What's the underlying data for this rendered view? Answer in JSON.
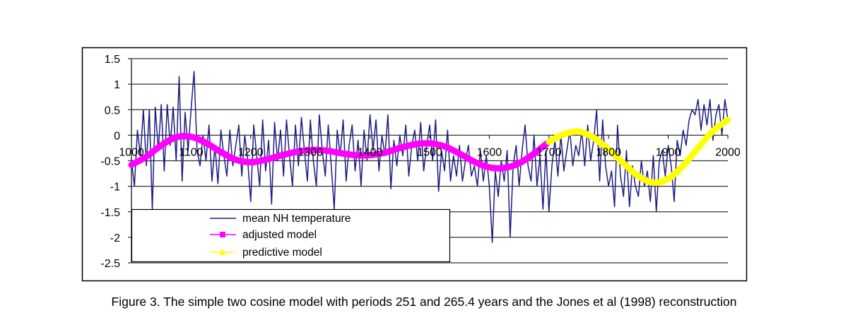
{
  "caption": "Figure 3. The simple two cosine model with periods 251 and 265.4 years and the Jones et al (1998) reconstruction",
  "chart_data": {
    "type": "line",
    "title": "",
    "xlabel": "",
    "ylabel": "",
    "xlim": [
      1000,
      2000
    ],
    "ylim": [
      -2.5,
      1.5
    ],
    "x_ticks": [
      "1000",
      "1100",
      "1200",
      "1300",
      "1400",
      "1500",
      "1600",
      "1700",
      "1800",
      "1900",
      "2000"
    ],
    "y_ticks": [
      "1.5",
      "1",
      "0.5",
      "0",
      "-0.5",
      "-1",
      "-1.5",
      "-2",
      "-2.5"
    ],
    "grid": "horizontal",
    "legend_placement": "bottom-left",
    "series": [
      {
        "name": "mean NH temperature",
        "color": "#1c1c82",
        "x_start": 1000,
        "x_step": 5,
        "values": [
          -0.5,
          -1.0,
          0.1,
          -0.4,
          0.5,
          -0.6,
          0.5,
          -1.45,
          0.55,
          -0.3,
          0.6,
          -0.7,
          0.6,
          -0.2,
          0.55,
          -0.5,
          1.15,
          -0.9,
          0.45,
          -0.3,
          0.5,
          1.25,
          -0.3,
          -0.6,
          0.0,
          -0.5,
          0.2,
          -0.9,
          -0.2,
          -0.95,
          0.1,
          -0.4,
          -0.8,
          0.1,
          -0.6,
          -0.2,
          0.2,
          -0.8,
          0.0,
          -0.5,
          -1.3,
          0.2,
          -0.4,
          -1.0,
          0.3,
          -0.7,
          -0.1,
          -1.35,
          0.25,
          -0.5,
          0.1,
          -0.8,
          0.3,
          -0.4,
          -1.0,
          0.2,
          -0.6,
          0.35,
          -0.3,
          -0.9,
          0.3,
          -0.5,
          -1.0,
          0.4,
          -0.3,
          -0.8,
          0.2,
          -0.6,
          -1.45,
          0.1,
          -0.4,
          0.3,
          -0.9,
          -0.2,
          0.2,
          -0.7,
          -0.1,
          -1.0,
          0.1,
          -0.5,
          0.4,
          -0.3,
          0.3,
          -0.7,
          0.0,
          -0.4,
          0.4,
          -1.05,
          -0.1,
          -0.6,
          0.0,
          -0.4,
          0.2,
          -0.8,
          -0.2,
          0.1,
          -0.5,
          0.25,
          -0.7,
          -0.2,
          0.2,
          -0.5,
          0.3,
          -1.1,
          -0.3,
          -0.7,
          0.1,
          -0.9,
          -0.4,
          -0.8,
          -0.2,
          -0.9,
          -0.5,
          -0.2,
          -0.8,
          -0.6,
          -1.0,
          -0.3,
          -0.9,
          -0.4,
          -1.0,
          -2.1,
          -0.7,
          -1.2,
          -0.5,
          -0.9,
          -0.3,
          -2.0,
          -0.6,
          -0.2,
          -1.0,
          -0.3,
          0.2,
          -0.6,
          -0.9,
          0.0,
          -1.0,
          -0.4,
          -1.45,
          -0.3,
          -1.5,
          -0.6,
          -0.1,
          -0.8,
          0.0,
          -0.7,
          -0.3,
          0.1,
          -0.6,
          -0.2,
          -0.4,
          0.1,
          -0.6,
          0.2,
          -0.5,
          -0.1,
          0.5,
          -0.9,
          0.3,
          -0.6,
          -1.0,
          -0.7,
          -1.4,
          0.2,
          -0.8,
          -1.2,
          -0.3,
          -1.4,
          -0.6,
          -1.0,
          -1.2,
          -0.5,
          -1.0,
          -0.7,
          -1.3,
          -0.4,
          -1.5,
          -0.5,
          -0.3,
          -0.8,
          -0.2,
          -0.6,
          -1.3,
          -0.1,
          -0.4,
          0.1,
          -0.2,
          0.3,
          0.5,
          0.4,
          0.7,
          0.1,
          0.6,
          0.2,
          0.7,
          -0.1,
          0.4,
          0.6,
          0.0,
          0.7,
          0.3
        ]
      },
      {
        "name": "adjusted model",
        "color": "#ff00ff",
        "marker": "square",
        "x": [
          1000,
          1025,
          1050,
          1075,
          1100,
          1125,
          1150,
          1175,
          1200,
          1225,
          1250,
          1275,
          1300,
          1325,
          1350,
          1375,
          1400,
          1425,
          1450,
          1475,
          1500,
          1525,
          1550,
          1575,
          1600,
          1625,
          1650,
          1675,
          1700
        ],
        "values": [
          -0.58,
          -0.42,
          -0.2,
          -0.04,
          -0.03,
          -0.15,
          -0.33,
          -0.48,
          -0.53,
          -0.48,
          -0.4,
          -0.33,
          -0.29,
          -0.3,
          -0.35,
          -0.39,
          -0.39,
          -0.34,
          -0.25,
          -0.18,
          -0.16,
          -0.22,
          -0.36,
          -0.52,
          -0.63,
          -0.64,
          -0.55,
          -0.36,
          -0.13
        ]
      },
      {
        "name": "predictive model",
        "color": "#ffff00",
        "marker": "triangle",
        "x": [
          1700,
          1725,
          1750,
          1775,
          1800,
          1825,
          1850,
          1875,
          1900,
          1925,
          1950,
          1975,
          2000
        ],
        "values": [
          -0.13,
          0.02,
          0.07,
          -0.05,
          -0.28,
          -0.55,
          -0.8,
          -0.93,
          -0.85,
          -0.6,
          -0.25,
          0.08,
          0.3
        ]
      }
    ]
  }
}
